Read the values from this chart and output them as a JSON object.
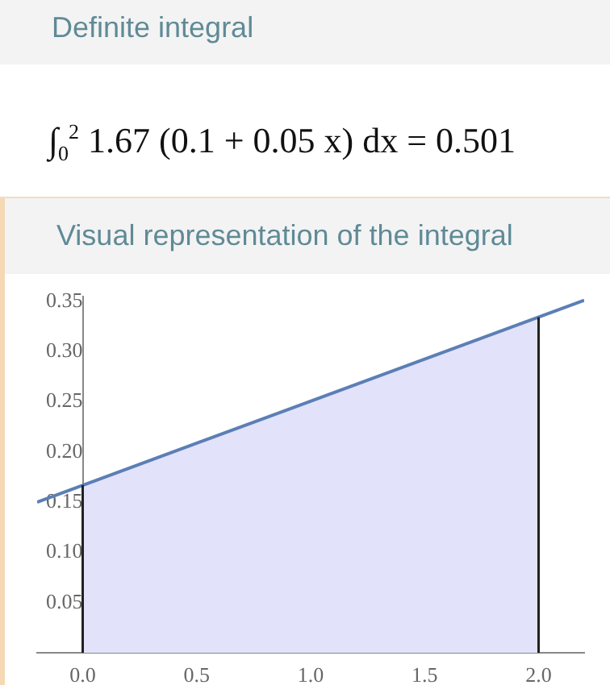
{
  "chart_data": {
    "type": "area",
    "title": "Definite integral",
    "subtitle": "∫$_{0}$$^{2}$ 1.67 (0.1 + 0.05 x) dx = 0.501",
    "annotations": [
      "Visual representation of the integral"
    ],
    "series": [
      {
        "type": "line",
        "color": "#5b7fb5",
        "x": [
          -0.2,
          2.2
        ],
        "values": [
          0.15,
          0.351
        ]
      },
      {
        "color": "#e2e2fa",
        "x": [
          0,
          2
        ],
        "values": [
          0.167,
          0.334
        ]
      }
    ],
    "xlim": [
      -0.2,
      2.2
    ],
    "ylim": [
      0,
      0.355
    ],
    "xticks": [
      {
        "value": 0,
        "label": "0.0"
      },
      0.5,
      {
        "value": 1,
        "label": "1.0"
      },
      1.5,
      {
        "value": 2,
        "label": "2.0"
      }
    ],
    "yticks": [
      0.05,
      {
        "value": 0.1,
        "label": "0.10"
      },
      0.15,
      {
        "value": 0.2,
        "label": "0.20"
      },
      0.25,
      {
        "value": 0.3,
        "label": "0.30"
      },
      0.35
    ],
    "ref_lines": [
      {
        "axis": "x",
        "value": 0,
        "color": "#222222"
      },
      {
        "axis": "x",
        "value": 2,
        "color": "#222222"
      }
    ],
    "grid": false,
    "legend": false,
    "marker": "none",
    "line_style": "solid"
  }
}
